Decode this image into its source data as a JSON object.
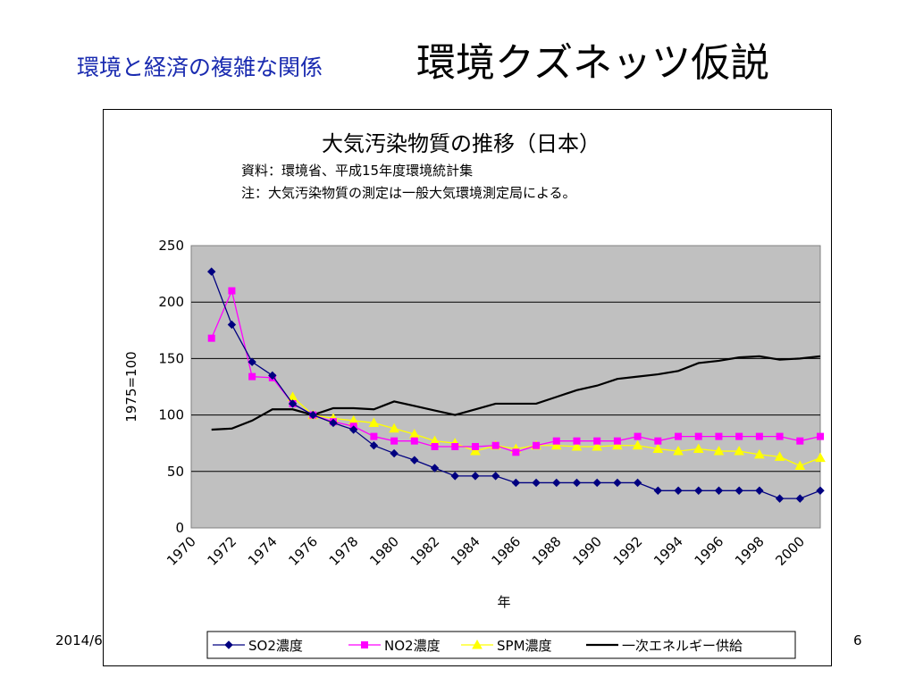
{
  "slide": {
    "subtitle": "環境と経済の複雑な関係",
    "title": "環境クズネッツ仮説",
    "date": "2014/6",
    "page_number": "6"
  },
  "chart_data": {
    "type": "line",
    "title": "大気汚染物質の推移（日本）",
    "notes": [
      "資料：環境省、平成15年度環境統計集",
      "注：大気汚染物質の測定は一般大気環境測定局による。"
    ],
    "xlabel": "年",
    "ylabel": "1975=100",
    "ylim": [
      0,
      250
    ],
    "yticks": [
      0,
      50,
      100,
      150,
      200,
      250
    ],
    "xlim": [
      1970,
      2001
    ],
    "xticks": [
      1970,
      1972,
      1974,
      1976,
      1978,
      1980,
      1982,
      1984,
      1986,
      1988,
      1990,
      1992,
      1994,
      1996,
      1998,
      2000
    ],
    "grid": "horizontal",
    "plot_background": "#c0c0c0",
    "legend_position": "bottom",
    "x": [
      1971,
      1972,
      1973,
      1974,
      1975,
      1976,
      1977,
      1978,
      1979,
      1980,
      1981,
      1982,
      1983,
      1984,
      1985,
      1986,
      1987,
      1988,
      1989,
      1990,
      1991,
      1992,
      1993,
      1994,
      1995,
      1996,
      1997,
      1998,
      1999,
      2000,
      2001
    ],
    "series": [
      {
        "name": "SO2濃度",
        "color": "#000080",
        "marker": "diamond",
        "values": [
          227,
          180,
          147,
          135,
          110,
          100,
          93,
          87,
          73,
          66,
          60,
          53,
          46,
          46,
          46,
          40,
          40,
          40,
          40,
          40,
          40,
          40,
          33,
          33,
          33,
          33,
          33,
          33,
          26,
          26,
          33
        ]
      },
      {
        "name": "NO2濃度",
        "color": "#ff00ff",
        "marker": "square",
        "values": [
          168,
          210,
          134,
          133,
          110,
          100,
          94,
          90,
          81,
          77,
          77,
          72,
          72,
          72,
          73,
          67,
          73,
          77,
          77,
          77,
          77,
          81,
          77,
          81,
          81,
          81,
          81,
          81,
          81,
          77,
          81
        ]
      },
      {
        "name": "SPM濃度",
        "color": "#ffff00",
        "marker": "triangle",
        "values": [
          null,
          null,
          null,
          null,
          116,
          100,
          97,
          95,
          93,
          88,
          83,
          77,
          75,
          68,
          73,
          70,
          73,
          73,
          72,
          72,
          73,
          73,
          70,
          68,
          70,
          68,
          68,
          65,
          63,
          55,
          62
        ]
      },
      {
        "name": "一次エネルギー供給",
        "color": "#000000",
        "marker": "none",
        "values": [
          87,
          88,
          95,
          105,
          105,
          100,
          106,
          106,
          105,
          112,
          108,
          104,
          100,
          105,
          110,
          110,
          110,
          116,
          122,
          126,
          132,
          134,
          136,
          139,
          146,
          148,
          151,
          152,
          149,
          150,
          152
        ]
      }
    ]
  }
}
